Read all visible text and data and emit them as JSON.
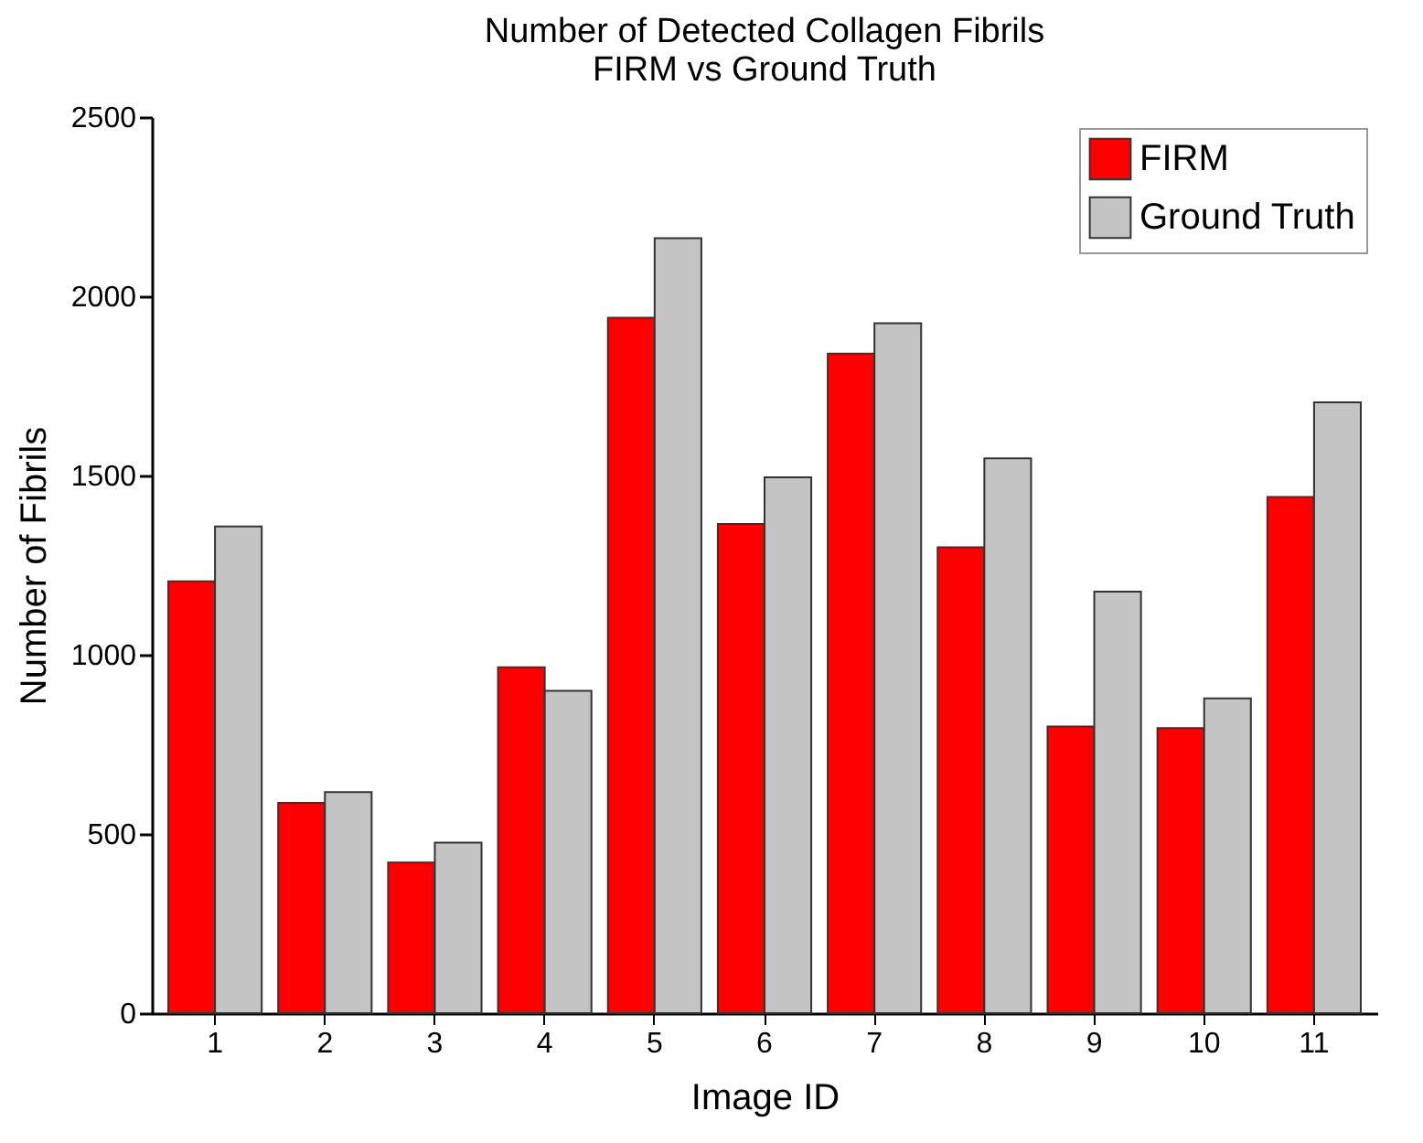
{
  "chart_data": {
    "type": "bar",
    "title": "Number of Detected Collagen Fibrils",
    "subtitle": "FIRM vs Ground Truth",
    "xlabel": "Image ID",
    "ylabel": "Number of Fibrils",
    "categories": [
      "1",
      "2",
      "3",
      "4",
      "5",
      "6",
      "7",
      "8",
      "9",
      "10",
      "11"
    ],
    "series": [
      {
        "name": "FIRM",
        "color": "#ff0000",
        "values": [
          1205,
          587,
          420,
          965,
          1940,
          1365,
          1840,
          1300,
          800,
          795,
          1440
        ]
      },
      {
        "name": "Ground Truth",
        "color": "#c4c4c4",
        "values": [
          1358,
          617,
          476,
          899,
          2162,
          1495,
          1925,
          1548,
          1176,
          878,
          1704
        ]
      }
    ],
    "ylim": [
      0,
      2500
    ],
    "yticks": [
      0,
      500,
      1000,
      1500,
      2000,
      2500
    ],
    "grid": false,
    "legend": "top right"
  }
}
